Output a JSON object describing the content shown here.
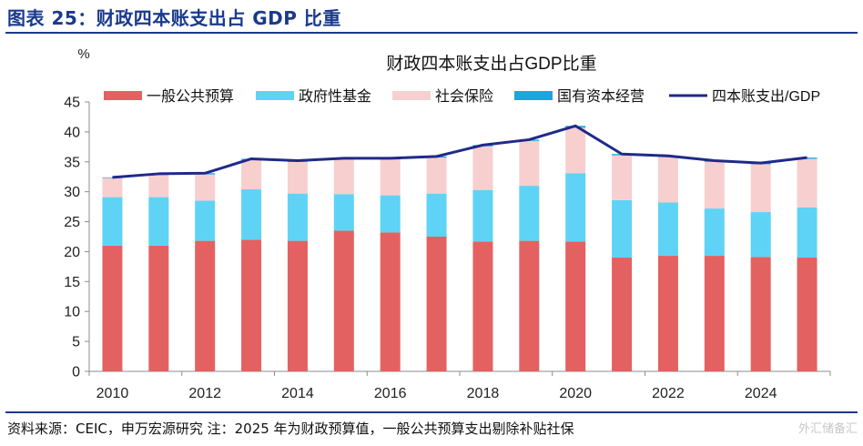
{
  "figure_title": "图表 25：财政四本账支出占 GDP 比重",
  "source_note": "资料来源：CEIC，申万宏源研究 注：2025 年为财政预算值，一般公共预算支出剔除补贴社保",
  "watermark": "外汇储备汇",
  "colors": {
    "general_budget": "#e46161",
    "gov_fund": "#5ed3f5",
    "social_insurance": "#f7cfcf",
    "soe_capital": "#1aa7e0",
    "total_line": "#1f2a8a",
    "title_blue": "#1a3a8c"
  },
  "chart_data": {
    "type": "bar",
    "stacked": true,
    "title": "财政四本账支出占GDP比重",
    "ylabel": "%",
    "xlabel": "",
    "ylim": [
      0,
      45
    ],
    "yticks": [
      0,
      5,
      10,
      15,
      20,
      25,
      30,
      35,
      40,
      45
    ],
    "categories": [
      "2010",
      "2011",
      "2012",
      "2013",
      "2014",
      "2015",
      "2016",
      "2017",
      "2018",
      "2019",
      "2020",
      "2021",
      "2022",
      "2023",
      "2024",
      "2025"
    ],
    "x_tick_labels": [
      "2010",
      "2012",
      "2014",
      "2016",
      "2018",
      "2020",
      "2022",
      "2024"
    ],
    "series": [
      {
        "name": "一般公共预算",
        "key": "general_budget",
        "values": [
          21.0,
          21.0,
          21.8,
          22.0,
          21.8,
          23.5,
          23.2,
          22.5,
          21.7,
          21.8,
          21.7,
          19.0,
          19.3,
          19.3,
          19.1,
          19.0
        ]
      },
      {
        "name": "政府性基金",
        "key": "gov_fund",
        "values": [
          8.1,
          8.1,
          6.7,
          8.4,
          7.9,
          6.1,
          6.2,
          7.2,
          8.6,
          9.2,
          11.4,
          9.6,
          8.9,
          7.9,
          7.5,
          8.4
        ]
      },
      {
        "name": "社会保险",
        "key": "social_insurance",
        "values": [
          3.2,
          3.7,
          4.4,
          4.9,
          5.3,
          5.8,
          6.0,
          6.0,
          7.3,
          7.5,
          7.6,
          7.5,
          7.6,
          7.8,
          8.0,
          8.1
        ]
      },
      {
        "name": "国有资本经营",
        "key": "soe_capital",
        "values": [
          0.1,
          0.2,
          0.2,
          0.2,
          0.2,
          0.2,
          0.2,
          0.2,
          0.2,
          0.2,
          0.3,
          0.2,
          0.2,
          0.2,
          0.2,
          0.2
        ]
      }
    ],
    "line": {
      "name": "四本账支出/GDP",
      "key": "total_line",
      "values": [
        32.4,
        33.0,
        33.1,
        35.5,
        35.2,
        35.6,
        35.6,
        35.9,
        37.8,
        38.7,
        41.0,
        36.3,
        36.0,
        35.2,
        34.8,
        35.7
      ]
    },
    "legend_position": "top"
  }
}
